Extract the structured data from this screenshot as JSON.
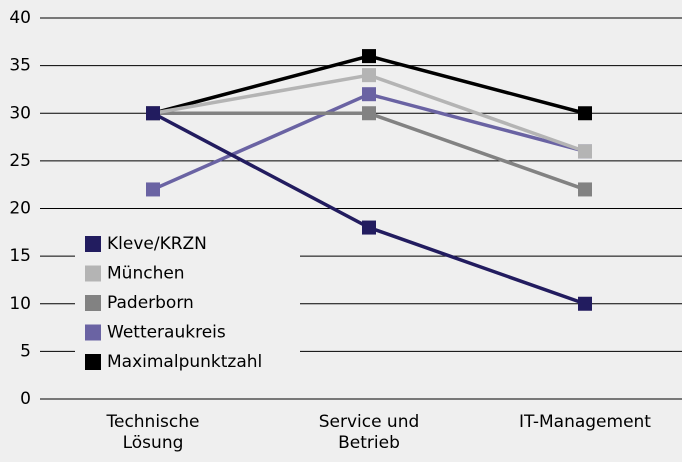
{
  "chart_data": {
    "type": "line",
    "categories": [
      "Technische\nLösung",
      "Service und\nBetrieb",
      "IT-Management"
    ],
    "series": [
      {
        "name": "Kleve/KRZN",
        "color": "#221c5f",
        "values": [
          30,
          18,
          10
        ]
      },
      {
        "name": "München",
        "color": "#b4b4b4",
        "values": [
          30,
          34,
          26
        ]
      },
      {
        "name": "Paderborn",
        "color": "#828282",
        "values": [
          30,
          30,
          22
        ]
      },
      {
        "name": "Wetteraukreis",
        "color": "#6a63a3",
        "values": [
          22,
          32,
          26
        ]
      },
      {
        "name": "Maximalpunktzahl",
        "color": "#000000",
        "values": [
          30,
          36,
          30
        ]
      }
    ],
    "ylim": [
      0,
      40
    ],
    "yticks": [
      0,
      5,
      10,
      15,
      20,
      25,
      30,
      35,
      40
    ],
    "grid": true,
    "legend": "lower left"
  }
}
